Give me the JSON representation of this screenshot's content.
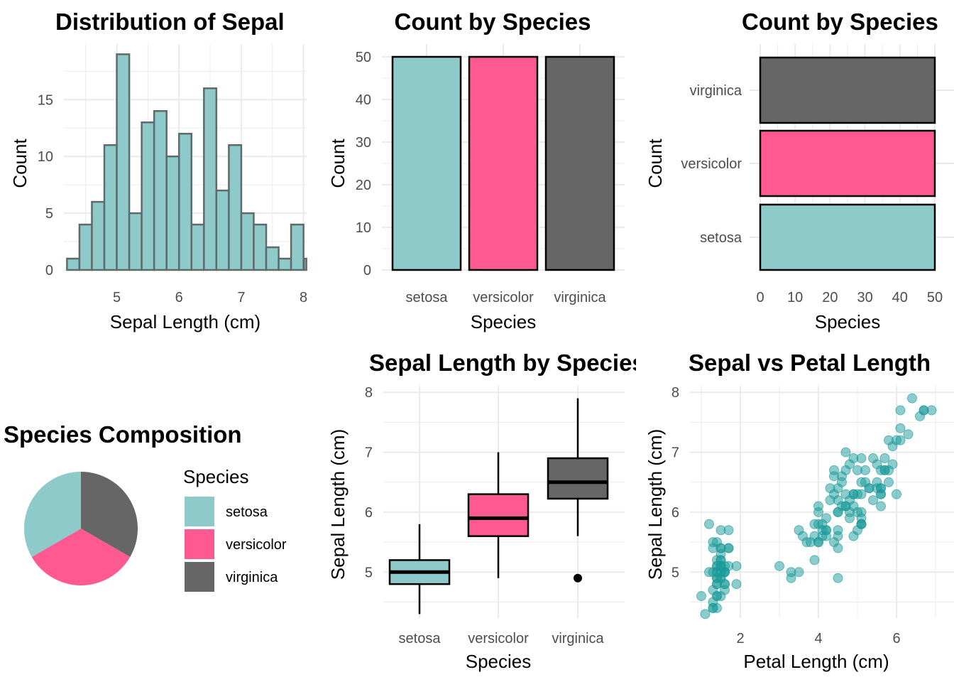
{
  "colors": {
    "setosa": "#8ECACA",
    "versicolor": "#FF5991",
    "virginica": "#666666",
    "scatter": "#1A9A9A",
    "grid": "#EBEBEB"
  },
  "chart_data": [
    {
      "id": "histogram",
      "type": "bar",
      "title": "Distribution of Sepal",
      "xlabel": "Sepal Length (cm)",
      "ylabel": "Count",
      "xlim": [
        4.15,
        8.05
      ],
      "ylim": [
        0,
        19.9
      ],
      "xticks": [
        5,
        6,
        7,
        8
      ],
      "yticks": [
        0,
        5,
        10,
        15
      ],
      "x": [
        4.3,
        4.5,
        4.7,
        4.9,
        5.1,
        5.3,
        5.5,
        5.7,
        5.9,
        6.1,
        6.3,
        6.5,
        6.7,
        6.9,
        7.1,
        7.3,
        7.5,
        7.7,
        7.9
      ],
      "values": [
        1,
        4,
        6,
        11,
        19,
        5,
        13,
        14,
        10,
        12,
        4,
        16,
        7,
        11,
        5,
        4,
        2,
        1,
        4
      ],
      "extra_bar": {
        "x": 8.0,
        "value": 1
      },
      "grid": true
    },
    {
      "id": "count-vertical",
      "type": "bar",
      "title": "Count by Species",
      "xlabel": "Species",
      "ylabel": "Count",
      "categories": [
        "setosa",
        "versicolor",
        "virginica"
      ],
      "values": [
        50,
        50,
        50
      ],
      "ylim": [
        0,
        50
      ],
      "yticks": [
        0,
        10,
        20,
        30,
        40,
        50
      ],
      "grid": true
    },
    {
      "id": "count-horizontal",
      "type": "bar",
      "orientation": "horizontal",
      "title": "Count by Species",
      "xlabel": "Species",
      "ylabel": "Count",
      "categories": [
        "setosa",
        "versicolor",
        "virginica"
      ],
      "values": [
        50,
        50,
        50
      ],
      "xlim": [
        0,
        50
      ],
      "xticks": [
        0,
        10,
        20,
        30,
        40,
        50
      ],
      "grid": true
    },
    {
      "id": "pie",
      "type": "pie",
      "title": "Species Composition",
      "legend_title": "Species",
      "categories": [
        "setosa",
        "versicolor",
        "virginica"
      ],
      "values": [
        50,
        50,
        50
      ],
      "legend": "right"
    },
    {
      "id": "boxplot",
      "type": "box",
      "title": "Sepal Length by Species",
      "xlabel": "Species",
      "ylabel": "Sepal Length (cm)",
      "categories": [
        "setosa",
        "versicolor",
        "virginica"
      ],
      "ylim": [
        4.15,
        8.05
      ],
      "yticks": [
        5,
        6,
        7,
        8
      ],
      "boxes": [
        {
          "min": 4.3,
          "q1": 4.8,
          "median": 5.0,
          "q3": 5.2,
          "max": 5.8,
          "outliers": []
        },
        {
          "min": 4.9,
          "q1": 5.6,
          "median": 5.9,
          "q3": 6.3,
          "max": 7.0,
          "outliers": []
        },
        {
          "min": 5.6,
          "q1": 6.225,
          "median": 6.5,
          "q3": 6.9,
          "max": 7.9,
          "outliers": [
            4.9
          ]
        }
      ],
      "grid": true
    },
    {
      "id": "scatter",
      "type": "scatter",
      "title": "Sepal vs Petal Length",
      "xlabel": "Petal Length (cm)",
      "ylabel": "Sepal Length (cm)",
      "xlim": [
        0.9,
        7.0
      ],
      "ylim": [
        4.15,
        8.05
      ],
      "xticks": [
        2,
        4,
        6
      ],
      "yticks": [
        5,
        6,
        7,
        8
      ],
      "points": [
        [
          1.4,
          5.1
        ],
        [
          1.4,
          4.9
        ],
        [
          1.3,
          4.7
        ],
        [
          1.5,
          4.6
        ],
        [
          1.4,
          5.0
        ],
        [
          1.7,
          5.4
        ],
        [
          1.4,
          4.6
        ],
        [
          1.5,
          5.0
        ],
        [
          1.4,
          4.4
        ],
        [
          1.5,
          4.9
        ],
        [
          1.5,
          5.4
        ],
        [
          1.6,
          4.8
        ],
        [
          1.4,
          4.8
        ],
        [
          1.1,
          4.3
        ],
        [
          1.2,
          5.8
        ],
        [
          1.5,
          5.7
        ],
        [
          1.3,
          5.4
        ],
        [
          1.4,
          5.1
        ],
        [
          1.7,
          5.7
        ],
        [
          1.5,
          5.1
        ],
        [
          1.7,
          5.4
        ],
        [
          1.5,
          5.1
        ],
        [
          1.0,
          4.6
        ],
        [
          1.7,
          5.1
        ],
        [
          1.9,
          4.8
        ],
        [
          1.6,
          5.0
        ],
        [
          1.6,
          5.0
        ],
        [
          1.5,
          5.2
        ],
        [
          1.4,
          5.2
        ],
        [
          1.6,
          4.7
        ],
        [
          1.6,
          4.8
        ],
        [
          1.5,
          5.4
        ],
        [
          1.5,
          5.2
        ],
        [
          1.4,
          5.5
        ],
        [
          1.5,
          4.9
        ],
        [
          1.2,
          5.0
        ],
        [
          1.3,
          5.5
        ],
        [
          1.4,
          4.9
        ],
        [
          1.3,
          4.4
        ],
        [
          1.5,
          5.1
        ],
        [
          1.3,
          5.0
        ],
        [
          1.3,
          4.5
        ],
        [
          1.3,
          4.4
        ],
        [
          1.6,
          5.0
        ],
        [
          1.9,
          5.1
        ],
        [
          1.4,
          4.8
        ],
        [
          1.6,
          5.1
        ],
        [
          1.4,
          4.6
        ],
        [
          1.5,
          5.3
        ],
        [
          1.4,
          5.0
        ],
        [
          4.7,
          7.0
        ],
        [
          4.5,
          6.4
        ],
        [
          4.9,
          6.9
        ],
        [
          4.0,
          5.5
        ],
        [
          4.6,
          6.5
        ],
        [
          4.5,
          5.7
        ],
        [
          4.7,
          6.3
        ],
        [
          3.3,
          4.9
        ],
        [
          4.6,
          6.6
        ],
        [
          3.9,
          5.2
        ],
        [
          3.5,
          5.0
        ],
        [
          4.2,
          5.9
        ],
        [
          4.0,
          6.0
        ],
        [
          4.7,
          6.1
        ],
        [
          3.6,
          5.6
        ],
        [
          4.4,
          6.7
        ],
        [
          4.5,
          5.6
        ],
        [
          4.1,
          5.8
        ],
        [
          4.5,
          6.2
        ],
        [
          3.9,
          5.6
        ],
        [
          4.8,
          5.9
        ],
        [
          4.0,
          6.1
        ],
        [
          4.9,
          6.3
        ],
        [
          4.7,
          6.1
        ],
        [
          4.3,
          6.4
        ],
        [
          4.4,
          6.6
        ],
        [
          4.8,
          6.8
        ],
        [
          5.0,
          6.7
        ],
        [
          4.5,
          6.0
        ],
        [
          3.5,
          5.7
        ],
        [
          3.8,
          5.5
        ],
        [
          3.7,
          5.5
        ],
        [
          3.9,
          5.8
        ],
        [
          5.1,
          6.0
        ],
        [
          4.5,
          5.4
        ],
        [
          4.5,
          6.0
        ],
        [
          4.7,
          6.7
        ],
        [
          4.4,
          6.3
        ],
        [
          4.1,
          5.6
        ],
        [
          4.0,
          5.5
        ],
        [
          4.4,
          5.5
        ],
        [
          4.6,
          6.1
        ],
        [
          4.0,
          5.8
        ],
        [
          3.3,
          5.0
        ],
        [
          4.2,
          5.6
        ],
        [
          4.2,
          5.7
        ],
        [
          4.2,
          5.7
        ],
        [
          4.3,
          6.2
        ],
        [
          3.0,
          5.1
        ],
        [
          4.1,
          5.7
        ],
        [
          6.0,
          6.3
        ],
        [
          5.1,
          5.8
        ],
        [
          5.9,
          7.1
        ],
        [
          5.6,
          6.3
        ],
        [
          5.8,
          6.5
        ],
        [
          6.6,
          7.6
        ],
        [
          4.5,
          4.9
        ],
        [
          6.3,
          7.3
        ],
        [
          5.8,
          6.7
        ],
        [
          6.1,
          7.2
        ],
        [
          5.1,
          6.5
        ],
        [
          5.3,
          6.4
        ],
        [
          5.5,
          6.8
        ],
        [
          5.0,
          5.7
        ],
        [
          5.1,
          5.8
        ],
        [
          5.3,
          6.4
        ],
        [
          5.5,
          6.5
        ],
        [
          6.7,
          7.7
        ],
        [
          6.9,
          7.7
        ],
        [
          5.0,
          6.0
        ],
        [
          5.7,
          6.9
        ],
        [
          4.9,
          5.6
        ],
        [
          6.7,
          7.7
        ],
        [
          4.9,
          6.3
        ],
        [
          5.7,
          6.7
        ],
        [
          6.0,
          7.2
        ],
        [
          4.8,
          6.2
        ],
        [
          4.9,
          6.1
        ],
        [
          5.6,
          6.4
        ],
        [
          5.8,
          7.2
        ],
        [
          6.1,
          7.4
        ],
        [
          6.4,
          7.9
        ],
        [
          5.6,
          6.4
        ],
        [
          5.1,
          6.3
        ],
        [
          5.6,
          6.1
        ],
        [
          6.1,
          7.7
        ],
        [
          5.6,
          6.3
        ],
        [
          5.5,
          6.4
        ],
        [
          4.8,
          6.0
        ],
        [
          5.4,
          6.9
        ],
        [
          5.6,
          6.7
        ],
        [
          5.1,
          6.9
        ],
        [
          5.1,
          5.8
        ],
        [
          5.9,
          6.8
        ],
        [
          5.7,
          6.7
        ],
        [
          5.2,
          6.7
        ],
        [
          5.0,
          6.3
        ],
        [
          5.2,
          6.5
        ],
        [
          5.4,
          6.2
        ],
        [
          5.1,
          5.9
        ]
      ],
      "grid": true
    }
  ]
}
